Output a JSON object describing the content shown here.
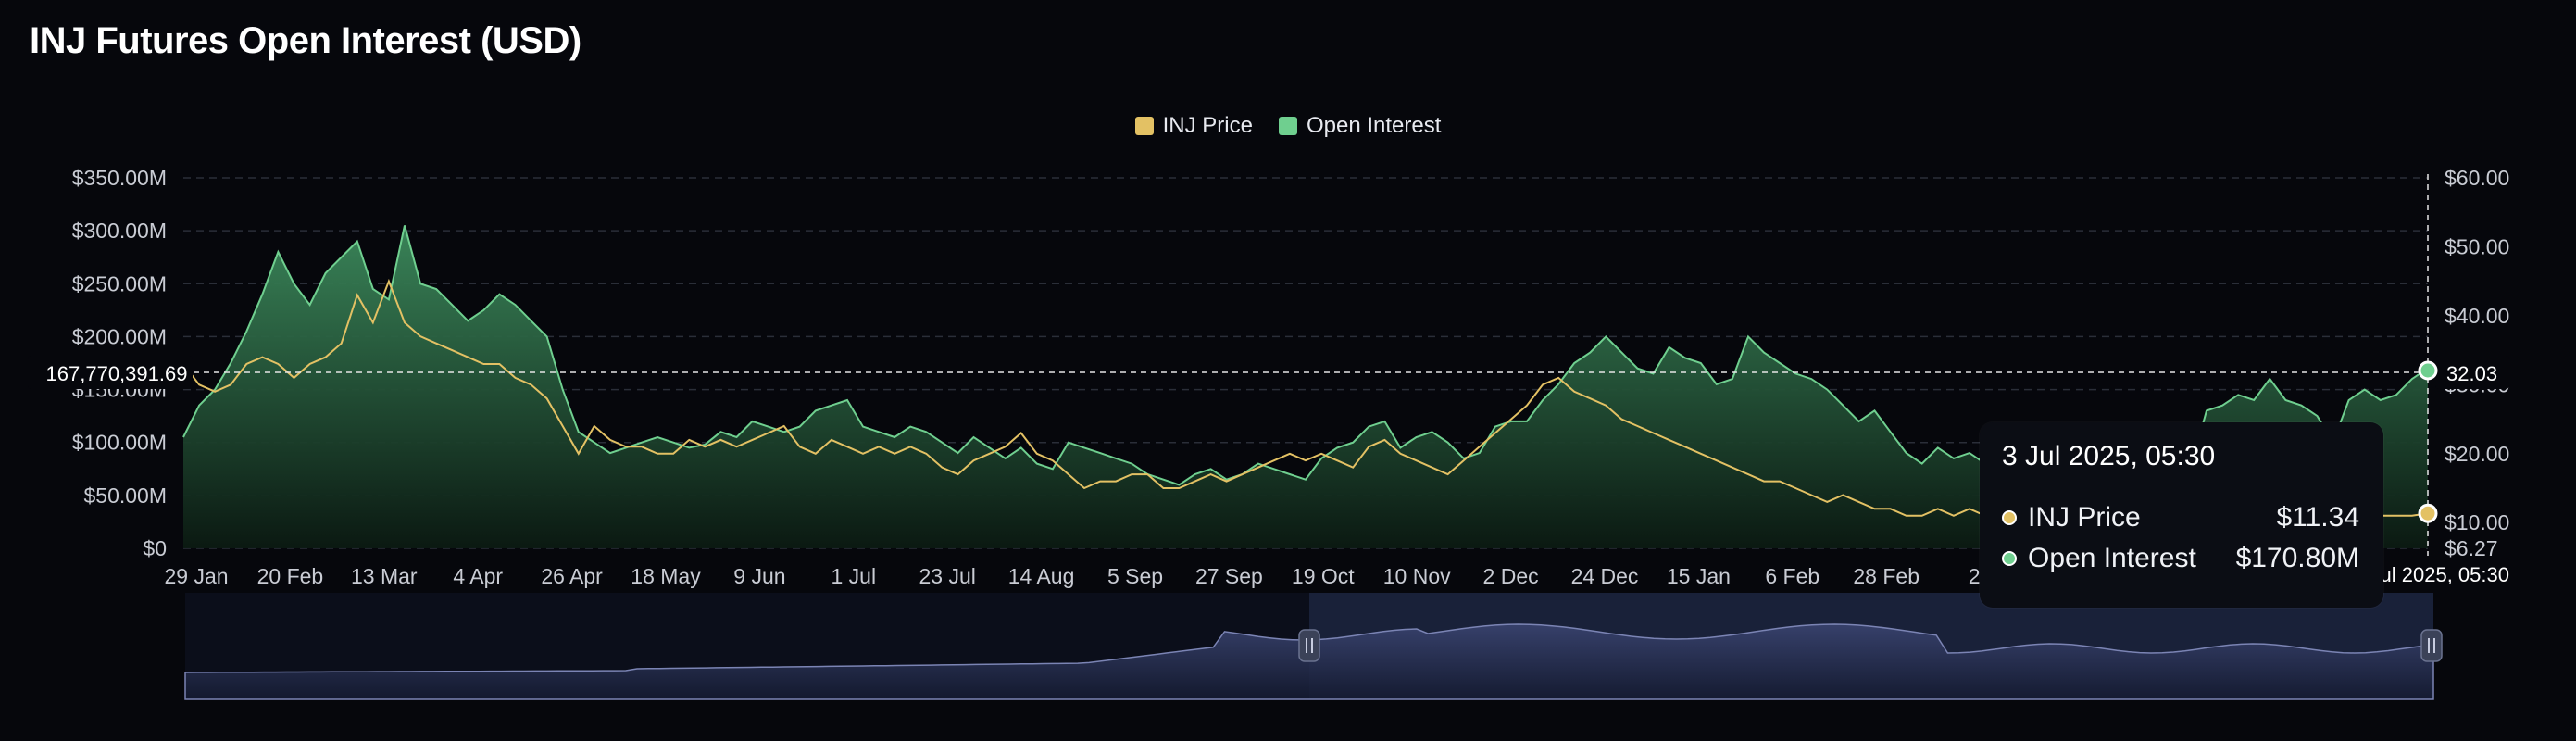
{
  "title": "INJ Futures Open Interest (USD)",
  "colors": {
    "price": "#e3c164",
    "open_interest": "#6fcf8f",
    "oi_fill_top": "#3c8a5c",
    "oi_fill_bottom": "#0b1a12",
    "grid": "#2a2e38",
    "axis_text": "#c9ccd4",
    "navigator": "#7b84b4",
    "navigator_window": "#1c2440"
  },
  "legend": [
    {
      "label": "INJ Price",
      "color": "#e3c164"
    },
    {
      "label": "Open Interest",
      "color": "#6fcf8f"
    }
  ],
  "crosshair": {
    "left_label": "167,770,391.69",
    "right_label": "32.03",
    "bottom_label": "3 Jul 2025, 05:30"
  },
  "tooltip": {
    "date": "3 Jul 2025, 05:30",
    "rows": [
      {
        "label": "INJ Price",
        "value": "$11.34",
        "color": "#e3c164"
      },
      {
        "label": "Open Interest",
        "value": "$170.80M",
        "color": "#6fcf8f"
      }
    ]
  },
  "chart_data": {
    "type": "area",
    "title": "INJ Futures Open Interest (USD)",
    "x_tick_labels": [
      "29 Jan",
      "20 Feb",
      "13 Mar",
      "4 Apr",
      "26 Apr",
      "18 May",
      "9 Jun",
      "1 Jul",
      "23 Jul",
      "14 Aug",
      "5 Sep",
      "27 Sep",
      "19 Oct",
      "10 Nov",
      "2 Dec",
      "24 Dec",
      "15 Jan",
      "6 Feb",
      "28 Feb",
      "22"
    ],
    "y_left_ticks": [
      "$350.00M",
      "$300.00M",
      "$250.00M",
      "$200.00M",
      "$150.00M",
      "$100.00M",
      "$50.00M",
      "$0"
    ],
    "y_right_ticks": [
      "$60.00",
      "$50.00",
      "$40.00",
      "$30.00",
      "$20.00",
      "$10.00",
      "$6.27"
    ],
    "ylim_left": [
      0,
      350000000
    ],
    "ylim_right": [
      6.27,
      60
    ],
    "grid": true,
    "legend_position": "top-center",
    "series": [
      {
        "name": "Open Interest",
        "axis": "left",
        "values": [
          105,
          135,
          150,
          175,
          205,
          240,
          280,
          250,
          230,
          260,
          275,
          290,
          245,
          235,
          305,
          250,
          245,
          230,
          215,
          225,
          240,
          230,
          215,
          200,
          150,
          110,
          100,
          90,
          95,
          100,
          105,
          100,
          95,
          98,
          110,
          105,
          120,
          115,
          110,
          115,
          130,
          135,
          140,
          115,
          110,
          105,
          115,
          110,
          100,
          90,
          105,
          95,
          85,
          95,
          80,
          75,
          100,
          95,
          90,
          85,
          80,
          70,
          65,
          60,
          70,
          75,
          65,
          70,
          80,
          75,
          70,
          65,
          85,
          95,
          100,
          115,
          120,
          95,
          105,
          110,
          100,
          85,
          90,
          115,
          120,
          120,
          140,
          155,
          175,
          185,
          200,
          185,
          170,
          165,
          190,
          180,
          175,
          155,
          160,
          200,
          185,
          175,
          165,
          160,
          150,
          135,
          120,
          130,
          110,
          90,
          80,
          95,
          85,
          90,
          80,
          90,
          80,
          75,
          70,
          80,
          60,
          55,
          75,
          70,
          80,
          65,
          80,
          75,
          130,
          135,
          145,
          140,
          160,
          140,
          135,
          125,
          100,
          140,
          150,
          140,
          145,
          160,
          170
        ]
      },
      {
        "name": "INJ Price",
        "axis": "right",
        "values": [
          33,
          30,
          29,
          30,
          33,
          34,
          33,
          31,
          33,
          34,
          36,
          43,
          39,
          45,
          39,
          37,
          36,
          35,
          34,
          33,
          33,
          31,
          30,
          28,
          24,
          20,
          24,
          22,
          21,
          21,
          20,
          20,
          22,
          21,
          22,
          21,
          22,
          23,
          24,
          21,
          20,
          22,
          21,
          20,
          21,
          20,
          21,
          20,
          18,
          17,
          19,
          20,
          21,
          23,
          20,
          19,
          17,
          15,
          16,
          16,
          17,
          17,
          15,
          15,
          16,
          17,
          16,
          17,
          18,
          19,
          20,
          19,
          20,
          19,
          18,
          21,
          22,
          20,
          19,
          18,
          17,
          19,
          21,
          23,
          25,
          27,
          30,
          31,
          29,
          28,
          27,
          25,
          24,
          23,
          22,
          21,
          20,
          19,
          18,
          17,
          16,
          16,
          15,
          14,
          13,
          14,
          13,
          12,
          12,
          11,
          11,
          12,
          11,
          12,
          11,
          11,
          11,
          11,
          11,
          12,
          11,
          10,
          11,
          11,
          11,
          11,
          11,
          11,
          11,
          12,
          12,
          11,
          11,
          11,
          11,
          11,
          11,
          11,
          11,
          11,
          11,
          11,
          11.34
        ]
      }
    ]
  }
}
